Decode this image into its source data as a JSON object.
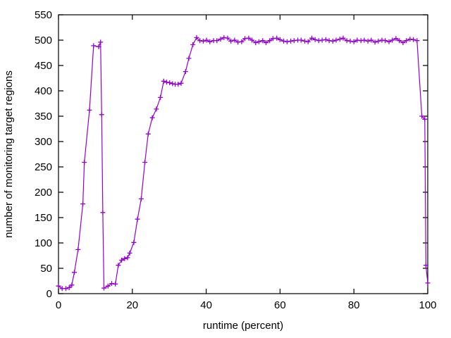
{
  "window": {
    "background": "#ffffff"
  },
  "chart_data": {
    "type": "line",
    "title": "",
    "xlabel": "runtime (percent)",
    "ylabel": "number of monitoring target regions",
    "xlim": [
      0,
      100
    ],
    "ylim": [
      0,
      550
    ],
    "x_ticks": [
      0,
      20,
      40,
      60,
      80,
      100
    ],
    "y_ticks": [
      0,
      50,
      100,
      150,
      200,
      250,
      300,
      350,
      400,
      450,
      500,
      550
    ],
    "grid": false,
    "legend_position": "none",
    "marker": "plus",
    "line_color": "#9400d3",
    "axis_color": "#000000",
    "series": [
      {
        "name": "monitoring target regions",
        "points": [
          [
            0,
            15
          ],
          [
            1,
            10
          ],
          [
            2,
            10
          ],
          [
            2.9,
            12
          ],
          [
            3.6,
            17
          ],
          [
            4.3,
            42
          ],
          [
            5.3,
            87
          ],
          [
            6.6,
            177
          ],
          [
            7,
            259
          ],
          [
            8.4,
            362
          ],
          [
            9.5,
            489
          ],
          [
            10.9,
            487
          ],
          [
            11.4,
            496
          ],
          [
            11.7,
            353
          ],
          [
            12,
            160
          ],
          [
            12.3,
            11
          ],
          [
            13.4,
            15
          ],
          [
            14.4,
            20
          ],
          [
            15.4,
            19
          ],
          [
            16.2,
            56
          ],
          [
            17.1,
            66
          ],
          [
            17.9,
            69
          ],
          [
            18.7,
            71
          ],
          [
            19.3,
            80
          ],
          [
            20.4,
            101
          ],
          [
            21.4,
            147
          ],
          [
            22.4,
            187
          ],
          [
            23.4,
            259
          ],
          [
            24.3,
            315
          ],
          [
            25.4,
            347
          ],
          [
            26.5,
            364
          ],
          [
            27.6,
            387
          ],
          [
            28.5,
            419
          ],
          [
            29.3,
            417
          ],
          [
            30.1,
            416
          ],
          [
            30.9,
            414
          ],
          [
            31.6,
            413
          ],
          [
            32.4,
            413
          ],
          [
            33.2,
            415
          ],
          [
            34.4,
            438
          ],
          [
            35.3,
            464
          ],
          [
            36.4,
            491
          ],
          [
            37.4,
            505
          ],
          [
            38.3,
            499
          ],
          [
            39.2,
            498
          ],
          [
            40.1,
            500
          ],
          [
            41,
            497
          ],
          [
            42,
            499
          ],
          [
            42.9,
            499
          ],
          [
            43.9,
            502
          ],
          [
            44.8,
            505
          ],
          [
            45.8,
            504
          ],
          [
            46.7,
            498
          ],
          [
            47.7,
            500
          ],
          [
            48.6,
            496
          ],
          [
            49.6,
            497
          ],
          [
            50.5,
            503
          ],
          [
            51.5,
            504
          ],
          [
            52.4,
            500
          ],
          [
            53.4,
            495
          ],
          [
            54.3,
            497
          ],
          [
            55.3,
            499
          ],
          [
            56.2,
            495
          ],
          [
            57.2,
            499
          ],
          [
            58.1,
            503
          ],
          [
            59.1,
            504
          ],
          [
            60,
            501
          ],
          [
            61,
            498
          ],
          [
            61.9,
            497
          ],
          [
            62.9,
            498
          ],
          [
            63.8,
            499
          ],
          [
            64.8,
            500
          ],
          [
            65.7,
            500
          ],
          [
            66.7,
            498
          ],
          [
            67.6,
            497
          ],
          [
            68.6,
            504
          ],
          [
            69.5,
            501
          ],
          [
            70.5,
            499
          ],
          [
            71.4,
            500
          ],
          [
            72.4,
            501
          ],
          [
            73.3,
            499
          ],
          [
            74.3,
            498
          ],
          [
            75.2,
            500
          ],
          [
            76.2,
            502
          ],
          [
            77.1,
            504
          ],
          [
            78.1,
            499
          ],
          [
            79,
            498
          ],
          [
            80,
            497
          ],
          [
            80.9,
            500
          ],
          [
            81.9,
            499
          ],
          [
            82.8,
            500
          ],
          [
            83.8,
            498
          ],
          [
            84.7,
            500
          ],
          [
            85.7,
            496
          ],
          [
            86.6,
            498
          ],
          [
            87.6,
            500
          ],
          [
            88.5,
            499
          ],
          [
            89.5,
            497
          ],
          [
            90.4,
            500
          ],
          [
            91.4,
            503
          ],
          [
            92.3,
            499
          ],
          [
            93.3,
            495
          ],
          [
            94.2,
            499
          ],
          [
            95.2,
            502
          ],
          [
            96.1,
            501
          ],
          [
            97.1,
            499
          ],
          [
            98.4,
            350
          ],
          [
            99.2,
            344
          ],
          [
            99.5,
            56
          ],
          [
            100,
            21
          ]
        ]
      }
    ]
  }
}
